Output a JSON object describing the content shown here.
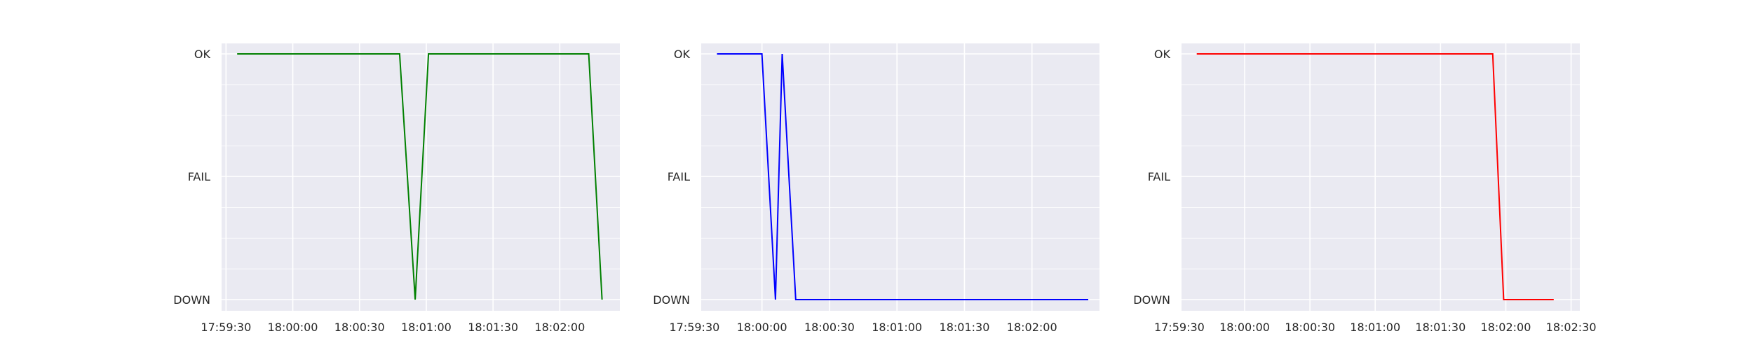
{
  "chart_data": [
    {
      "type": "line",
      "color": "#008000",
      "y_categories": [
        "DOWN",
        "FAIL",
        "OK"
      ],
      "xlim": [
        "17:59:28",
        "18:02:27"
      ],
      "x_ticks": [
        "17:59:30",
        "18:00:00",
        "18:00:30",
        "18:01:00",
        "18:01:30",
        "18:02:00"
      ],
      "grid": true,
      "series": [
        {
          "x": [
            "17:59:35",
            "18:00:48",
            "18:00:55",
            "18:01:01",
            "18:02:13",
            "18:02:19"
          ],
          "y": [
            "OK",
            "OK",
            "DOWN",
            "OK",
            "OK",
            "DOWN"
          ]
        }
      ]
    },
    {
      "type": "line",
      "color": "#0000ff",
      "y_categories": [
        "DOWN",
        "FAIL",
        "OK"
      ],
      "xlim": [
        "17:59:33",
        "18:02:30"
      ],
      "x_ticks": [
        "17:59:30",
        "18:00:00",
        "18:00:30",
        "18:01:00",
        "18:01:30",
        "18:02:00"
      ],
      "grid": true,
      "series": [
        {
          "x": [
            "17:59:40",
            "18:00:00",
            "18:00:06",
            "18:00:09",
            "18:00:15",
            "18:02:25"
          ],
          "y": [
            "OK",
            "OK",
            "DOWN",
            "OK",
            "DOWN",
            "DOWN"
          ]
        }
      ]
    },
    {
      "type": "line",
      "color": "#ff0000",
      "y_categories": [
        "DOWN",
        "FAIL",
        "OK"
      ],
      "xlim": [
        "17:59:31",
        "18:02:34"
      ],
      "x_ticks": [
        "17:59:30",
        "18:00:00",
        "18:00:30",
        "18:01:00",
        "18:01:30",
        "18:02:00",
        "18:02:30"
      ],
      "grid": true,
      "series": [
        {
          "x": [
            "17:59:38",
            "18:01:54",
            "18:01:59",
            "18:02:22"
          ],
          "y": [
            "OK",
            "OK",
            "DOWN",
            "DOWN"
          ]
        }
      ]
    }
  ]
}
